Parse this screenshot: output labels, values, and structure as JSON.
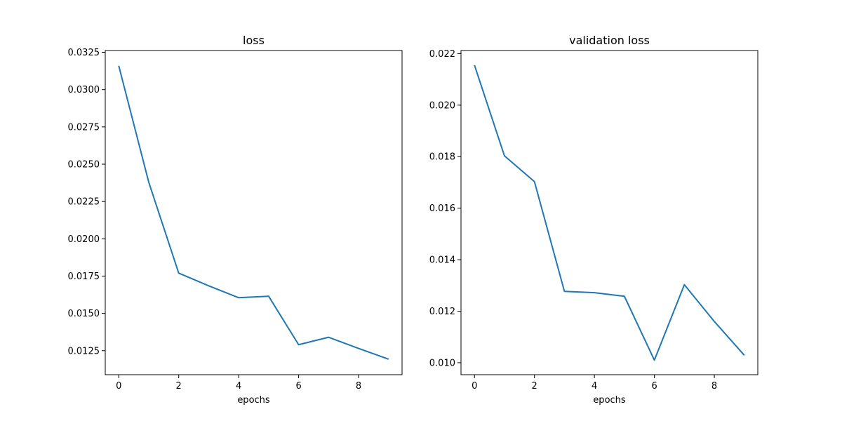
{
  "chart_data": [
    {
      "type": "line",
      "title": "loss",
      "xlabel": "epochs",
      "ylabel": "",
      "xlim": [
        -0.45,
        9.45
      ],
      "ylim": [
        0.01089,
        0.03262
      ],
      "x_ticks": [
        0,
        2,
        4,
        6,
        8
      ],
      "x_tick_labels": [
        "0",
        "2",
        "4",
        "6",
        "8"
      ],
      "y_ticks": [
        0.0125,
        0.015,
        0.0175,
        0.02,
        0.0225,
        0.025,
        0.0275,
        0.03,
        0.0325
      ],
      "y_tick_labels": [
        "0.0125",
        "0.0150",
        "0.0175",
        "0.0200",
        "0.0225",
        "0.0250",
        "0.0275",
        "0.0300",
        "0.0325"
      ],
      "grid": false,
      "series": [
        {
          "color": "#1f77b4",
          "x": [
            0,
            1,
            2,
            3,
            4,
            5,
            6,
            7,
            8,
            9
          ],
          "values": [
            0.0316,
            0.0238,
            0.0177,
            0.01685,
            0.01605,
            0.01615,
            0.0129,
            0.0134,
            0.01265,
            0.01193
          ]
        }
      ]
    },
    {
      "type": "line",
      "title": "validation loss",
      "xlabel": "epochs",
      "ylabel": "",
      "xlim": [
        -0.45,
        9.45
      ],
      "ylim": [
        0.009535,
        0.02212
      ],
      "x_ticks": [
        0,
        2,
        4,
        6,
        8
      ],
      "x_tick_labels": [
        "0",
        "2",
        "4",
        "6",
        "8"
      ],
      "y_ticks": [
        0.01,
        0.012,
        0.014,
        0.016,
        0.018,
        0.02,
        0.022
      ],
      "y_tick_labels": [
        "0.010",
        "0.012",
        "0.014",
        "0.016",
        "0.018",
        "0.020",
        "0.022"
      ],
      "grid": false,
      "series": [
        {
          "color": "#1f77b4",
          "x": [
            0,
            1,
            2,
            3,
            4,
            5,
            6,
            7,
            8,
            9
          ],
          "values": [
            0.02155,
            0.01803,
            0.01703,
            0.01277,
            0.01272,
            0.01258,
            0.0101,
            0.01303,
            0.0116,
            0.01029
          ]
        }
      ]
    }
  ]
}
